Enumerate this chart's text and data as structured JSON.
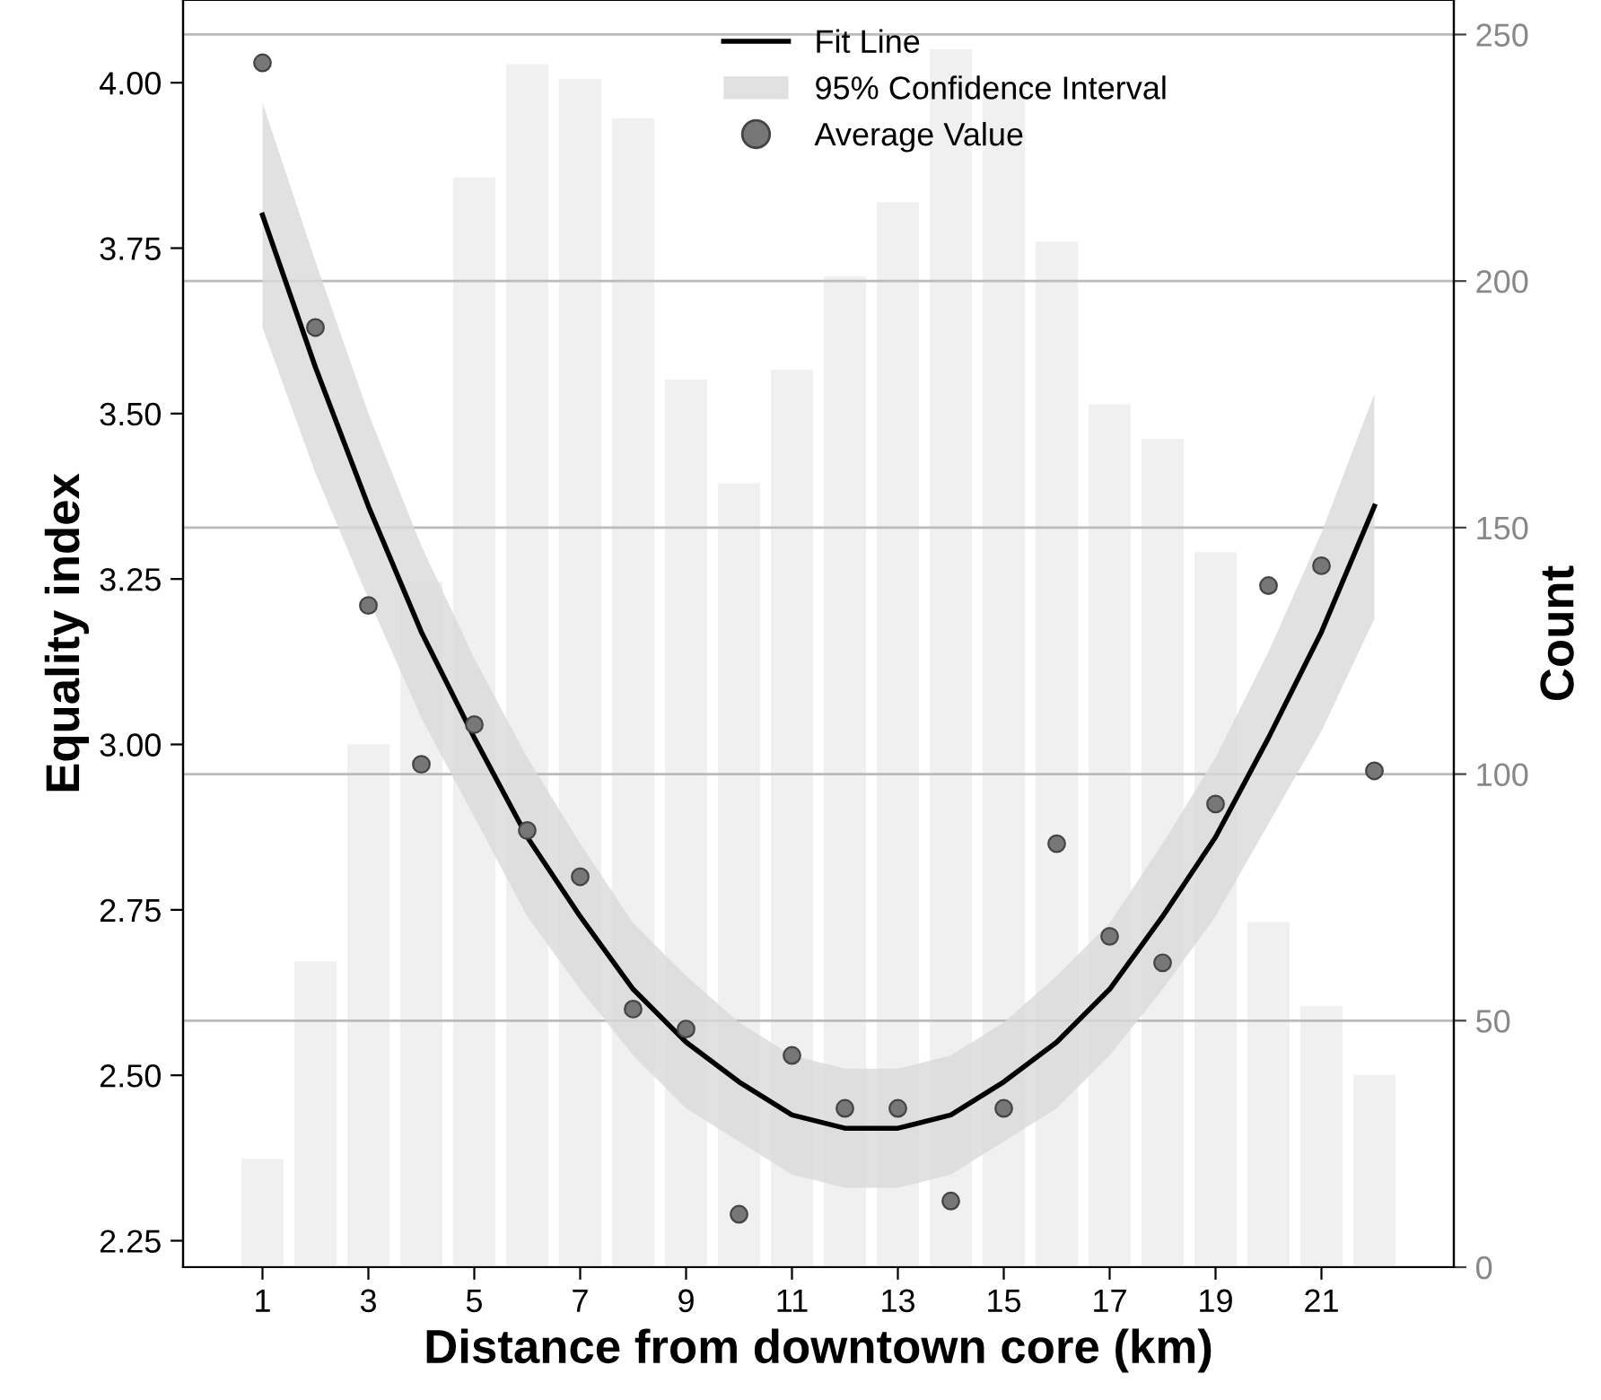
{
  "chart_data": {
    "type": "bar",
    "xlabel": "Distance from downtown core (km)",
    "ylabel": "Equality index",
    "y2label": "Count",
    "x": [
      1,
      2,
      3,
      4,
      5,
      6,
      7,
      8,
      9,
      10,
      11,
      12,
      13,
      14,
      15,
      16,
      17,
      18,
      19,
      20,
      21,
      22
    ],
    "xlim": [
      -0.5,
      23.5
    ],
    "xticks": [
      1,
      3,
      5,
      7,
      9,
      11,
      13,
      15,
      17,
      19,
      21
    ],
    "ylim": [
      2.21,
      4.125
    ],
    "yticks": [
      {
        "value": 2.25,
        "label": "2.25"
      },
      {
        "value": 2.5,
        "label": "2.50"
      },
      {
        "value": 2.75,
        "label": "2.75"
      },
      {
        "value": 3,
        "label": "3.00"
      },
      {
        "value": 3.25,
        "label": "3.25"
      },
      {
        "value": 3.5,
        "label": "3.50"
      },
      {
        "value": 3.75,
        "label": "3.75"
      },
      {
        "value": 4,
        "label": "4.00"
      }
    ],
    "y2lim": [
      0,
      257
    ],
    "y2ticks": [
      0,
      50,
      100,
      150,
      200,
      250
    ],
    "grid": "y",
    "legend": "top",
    "line_style": "solid",
    "series": [
      {
        "axis": "y2",
        "color": "#f0f0f0",
        "values": [
          22,
          62,
          106,
          139,
          221,
          244,
          241,
          233,
          180,
          159,
          182,
          201,
          216,
          247,
          239,
          208,
          175,
          168,
          145,
          70,
          53,
          39
        ]
      },
      {
        "type": "line",
        "name": "Fit Line",
        "color": "#000000",
        "x": [
          1,
          2,
          3,
          4,
          5,
          6,
          7,
          8,
          9,
          10,
          11,
          12,
          12.5,
          13,
          14,
          15,
          16,
          17,
          18,
          19,
          20,
          21,
          22
        ],
        "values": [
          3.8,
          3.57,
          3.36,
          3.17,
          3.01,
          2.86,
          2.74,
          2.63,
          2.55,
          2.49,
          2.44,
          2.42,
          2.42,
          2.42,
          2.44,
          2.49,
          2.55,
          2.63,
          2.74,
          2.86,
          3.01,
          3.17,
          3.36
        ],
        "lower": [
          3.63,
          3.41,
          3.22,
          3.04,
          2.89,
          2.74,
          2.63,
          2.53,
          2.45,
          2.4,
          2.35,
          2.33,
          2.33,
          2.33,
          2.35,
          2.4,
          2.45,
          2.53,
          2.63,
          2.74,
          2.88,
          3.02,
          3.19
        ],
        "upper": [
          3.97,
          3.73,
          3.5,
          3.3,
          3.13,
          2.98,
          2.85,
          2.73,
          2.65,
          2.58,
          2.53,
          2.51,
          2.51,
          2.51,
          2.53,
          2.58,
          2.65,
          2.73,
          2.85,
          2.98,
          3.14,
          3.32,
          3.53
        ]
      },
      {
        "type": "scatter",
        "name": "Average Value",
        "color": "#777777",
        "marker": "circle",
        "values": [
          4.03,
          3.63,
          3.21,
          2.97,
          3.03,
          2.87,
          2.8,
          2.6,
          2.57,
          2.29,
          2.53,
          2.45,
          2.45,
          2.31,
          2.45,
          2.85,
          2.71,
          2.67,
          2.91,
          3.24,
          3.27,
          2.96
        ]
      }
    ],
    "annotations": [
      "95% Confidence Interval"
    ]
  }
}
